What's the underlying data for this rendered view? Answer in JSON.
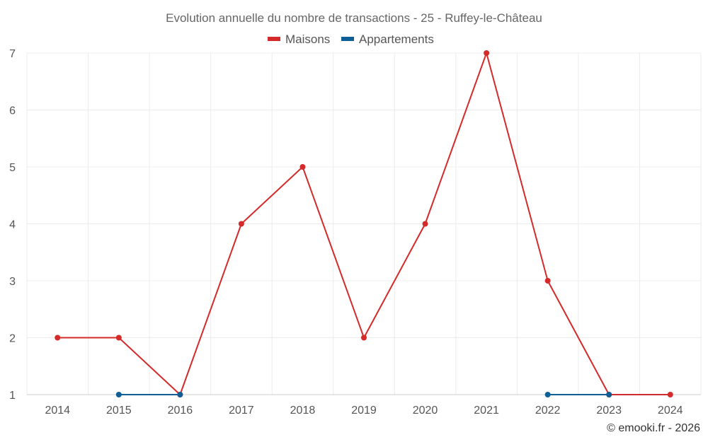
{
  "chart_data": {
    "type": "line",
    "title": "Evolution annuelle du nombre de transactions - 25 - Ruffey-le-Château",
    "categories": [
      "2014",
      "2015",
      "2016",
      "2017",
      "2018",
      "2019",
      "2020",
      "2021",
      "2022",
      "2023",
      "2024"
    ],
    "series": [
      {
        "name": "Maisons",
        "color": "#d42a2a",
        "values": [
          2,
          2,
          1,
          4,
          5,
          2,
          4,
          7,
          3,
          1,
          1
        ]
      },
      {
        "name": "Appartements",
        "color": "#0e5f96",
        "values": [
          null,
          1,
          1,
          null,
          null,
          null,
          null,
          null,
          1,
          1,
          null
        ]
      }
    ],
    "ylim": [
      1,
      7
    ],
    "yticks": [
      "1",
      "2",
      "3",
      "4",
      "5",
      "6",
      "7"
    ],
    "xlabel": "",
    "ylabel": "",
    "grid": true,
    "legend_position": "top-center"
  },
  "credit": "© emooki.fr - 2026"
}
